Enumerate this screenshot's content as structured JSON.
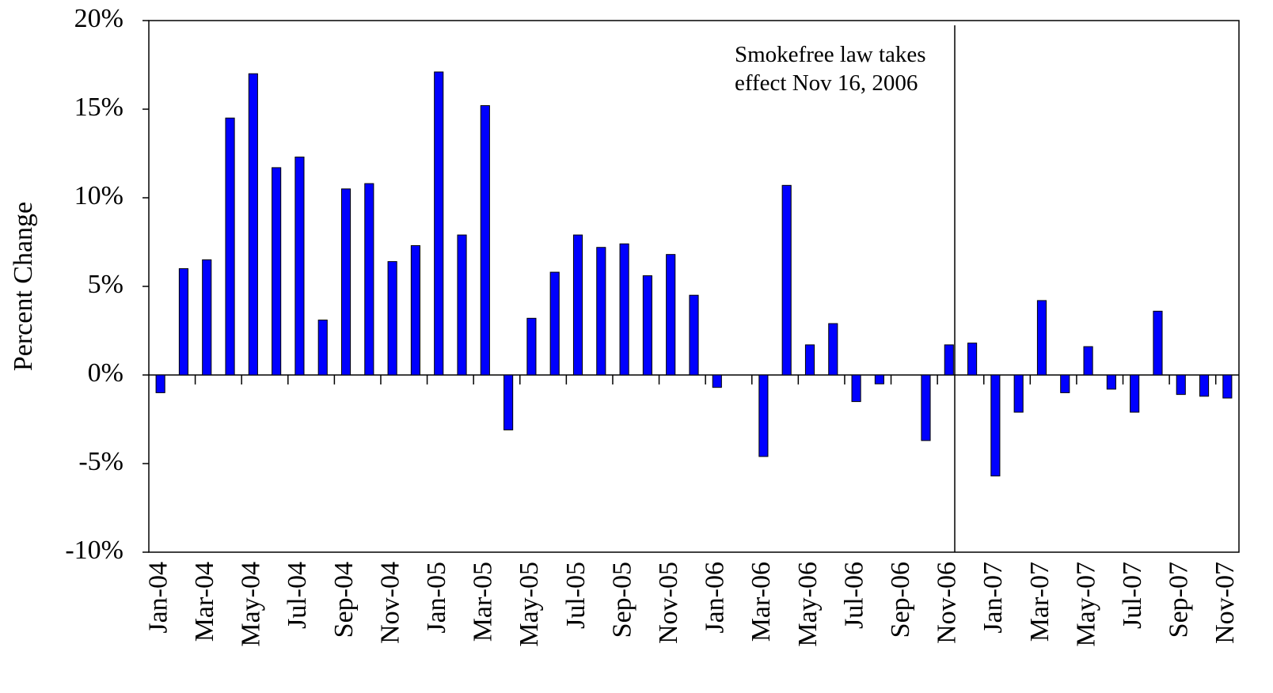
{
  "chart_data": {
    "type": "bar",
    "y_label": "Percent Change",
    "annotation": [
      "Smokefree law takes",
      "effect Nov 16, 2006"
    ],
    "categories": [
      "Jan-04",
      null,
      "Mar-04",
      null,
      "May-04",
      null,
      "Jul-04",
      null,
      "Sep-04",
      null,
      "Nov-04",
      null,
      "Jan-05",
      null,
      "Mar-05",
      null,
      "May-05",
      null,
      "Jul-05",
      null,
      "Sep-05",
      null,
      "Nov-05",
      null,
      "Jan-06",
      null,
      "Mar-06",
      null,
      "May-06",
      null,
      "Jul-06",
      null,
      "Sep-06",
      null,
      "Nov-06",
      null,
      "Jan-07",
      null,
      "Mar-07",
      null,
      "May-07",
      null,
      "Jul-07",
      null,
      "Sep-07",
      null,
      "Nov-07"
    ],
    "values": [
      -1.0,
      6.0,
      6.5,
      14.5,
      17.0,
      11.7,
      12.3,
      3.1,
      10.5,
      10.8,
      6.4,
      7.3,
      17.1,
      7.9,
      15.2,
      -3.1,
      3.2,
      5.8,
      7.9,
      7.2,
      7.4,
      5.6,
      6.8,
      4.5,
      -0.7,
      0,
      -4.6,
      10.7,
      1.7,
      2.9,
      -1.5,
      -0.5,
      0,
      -3.7,
      1.7,
      1.8,
      -5.7,
      -2.1,
      4.2,
      -1.0,
      1.6,
      -0.8,
      -2.1,
      3.6,
      -1.1,
      -1.2,
      -1.3
    ],
    "color": "#0000ff",
    "ylim": [
      -10,
      20
    ],
    "yticks": [
      {
        "value": -10,
        "label": "-10%"
      },
      {
        "value": -5,
        "label": "-5%"
      },
      {
        "value": 0,
        "label": "0%"
      },
      {
        "value": 5,
        "label": "5%"
      },
      {
        "value": 10,
        "label": "10%"
      },
      {
        "value": 15,
        "label": "15%"
      },
      {
        "value": 20,
        "label": "20%"
      }
    ],
    "grid": false
  }
}
